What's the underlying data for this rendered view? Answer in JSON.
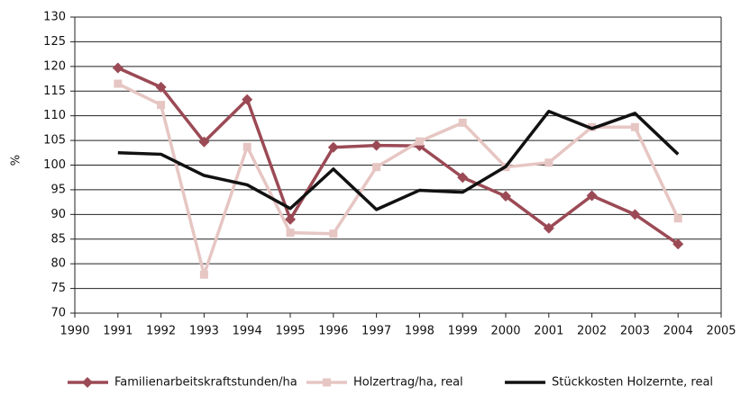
{
  "chart_data": {
    "type": "line",
    "y_label": "%",
    "x": [
      1991,
      1992,
      1993,
      1994,
      1995,
      1996,
      1997,
      1998,
      1999,
      2000,
      2001,
      2002,
      2003,
      2004
    ],
    "series": [
      {
        "name": "Familienarbeitskraftstunden/ha",
        "color": "#9b4a55",
        "marker": "diamond",
        "values": [
          119.7,
          115.8,
          104.7,
          113.3,
          89,
          103.6,
          104,
          103.9,
          97.5,
          93.7,
          87.2,
          93.8,
          90,
          84
        ]
      },
      {
        "name": "Holzertrag/ha, real",
        "color": "#e6c6c3",
        "marker": "square",
        "values": [
          116.5,
          112.2,
          77.8,
          103.7,
          86.3,
          86.1,
          99.6,
          104.8,
          108.6,
          99.6,
          100.5,
          107.7,
          107.7,
          89.2
        ]
      },
      {
        "name": "Stückkosten Holzernte, real",
        "color": "#111111",
        "marker": "none",
        "values": [
          102.5,
          102.2,
          97.9,
          96,
          91.2,
          99.2,
          91,
          94.9,
          94.5,
          99.7,
          110.9,
          107.4,
          110.5,
          102.2
        ]
      }
    ],
    "xlim": [
      1990,
      2005
    ],
    "xticks": [
      1990,
      1991,
      1992,
      1993,
      1994,
      1995,
      1996,
      1997,
      1998,
      1999,
      2000,
      2001,
      2002,
      2003,
      2004,
      2005
    ],
    "ylim": [
      70,
      130
    ],
    "yticks": [
      70,
      75,
      80,
      85,
      90,
      95,
      100,
      105,
      110,
      115,
      120,
      125,
      130
    ],
    "grid": true,
    "legend": "bottom"
  }
}
